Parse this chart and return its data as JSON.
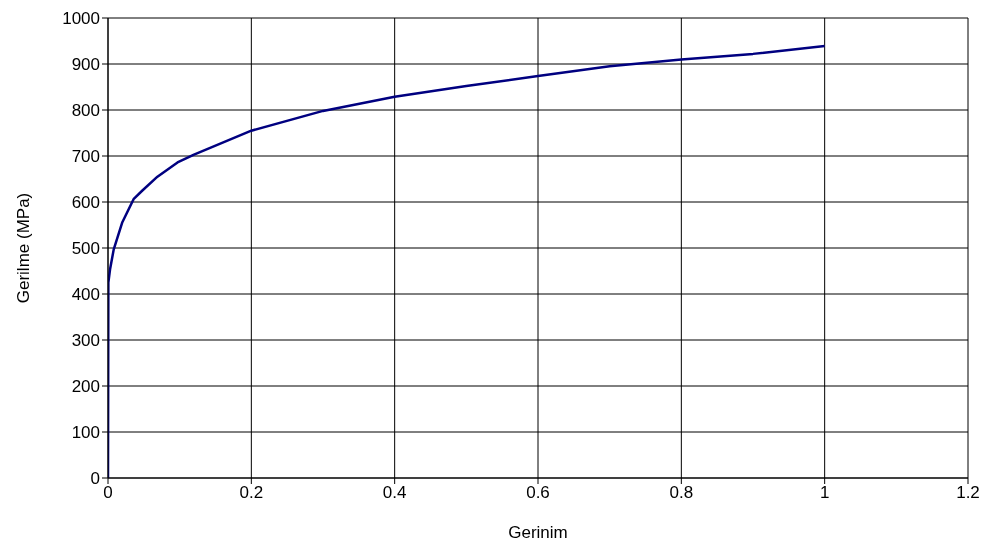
{
  "chart_data": {
    "type": "line",
    "xlabel": "Gerinim",
    "ylabel": "Gerilme (MPa)",
    "series": [
      {
        "color": "#000080",
        "x": [
          0,
          0.0005,
          0.003,
          0.008,
          0.02,
          0.036,
          0.048,
          0.069,
          0.097,
          0.12,
          0.2,
          0.3,
          0.4,
          0.5,
          0.6,
          0.7,
          0.8,
          0.9,
          1
        ],
        "values": [
          0,
          425,
          455,
          497,
          556,
          607,
          625,
          655,
          686,
          703,
          755,
          798,
          829,
          852,
          874,
          895,
          910,
          922,
          939
        ]
      }
    ],
    "xlim": [
      0,
      1.2
    ],
    "xticks": [
      0,
      0.2,
      0.4,
      0.6,
      0.8,
      1,
      1.2
    ],
    "ylim": [
      0,
      1000
    ],
    "yticks": [
      0,
      100,
      200,
      300,
      400,
      500,
      600,
      700,
      800,
      900,
      1000
    ],
    "grid": true,
    "marker": "none",
    "line_style": "solid"
  }
}
